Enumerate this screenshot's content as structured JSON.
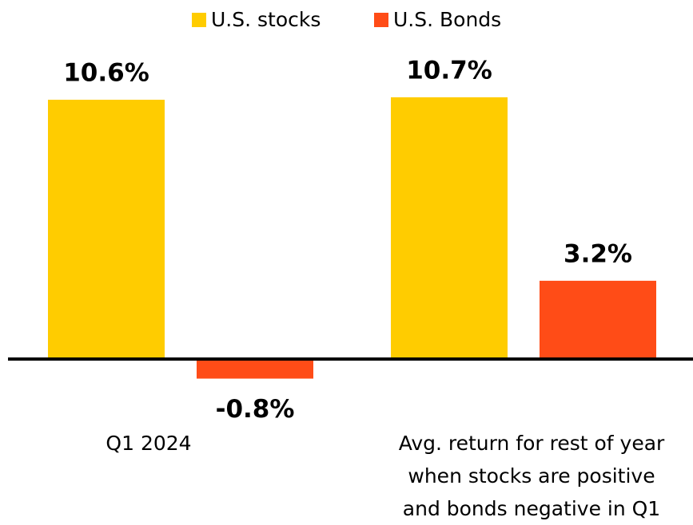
{
  "chart_data": {
    "type": "bar",
    "categories": [
      "Q1 2024",
      "Avg. return for rest of year\nwhen stocks are positive\nand bonds negative in Q1"
    ],
    "series": [
      {
        "name": "U.S. stocks",
        "color": "#ffcc00",
        "values": [
          10.6,
          10.7
        ],
        "value_labels": [
          "10.6%",
          "10.7%"
        ]
      },
      {
        "name": "U.S. Bonds",
        "color": "#ff4c17",
        "values": [
          -0.8,
          3.2
        ],
        "value_labels": [
          "-0.8%",
          "3.2%"
        ]
      }
    ],
    "legend": "top"
  }
}
